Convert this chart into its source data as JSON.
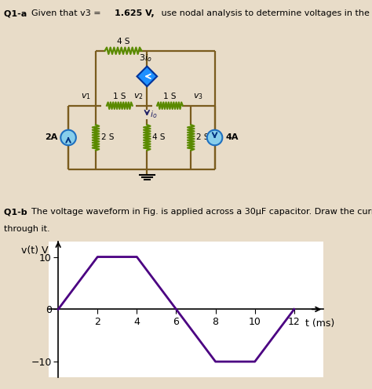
{
  "bg_color": "#e8dcc8",
  "wire_color": "#7a5c1e",
  "resistor_color": "#5a8a00",
  "source_fill": "#87CEEB",
  "source_edge": "#1E6FBF",
  "dep_source_fill": "#1E90FF",
  "dep_source_edge": "#003399",
  "waveform_color": "#4B0082",
  "waveform_points_x": [
    0,
    2,
    4,
    6,
    8,
    10,
    12
  ],
  "waveform_points_y": [
    0,
    10,
    10,
    0,
    -10,
    -10,
    0
  ],
  "plot_bg": "#ffffff",
  "xticks": [
    2,
    4,
    6,
    8,
    10,
    12
  ],
  "yticks": [
    -10,
    0,
    10
  ],
  "xlim": [
    -0.5,
    13.5
  ],
  "ylim": [
    -13,
    13
  ]
}
